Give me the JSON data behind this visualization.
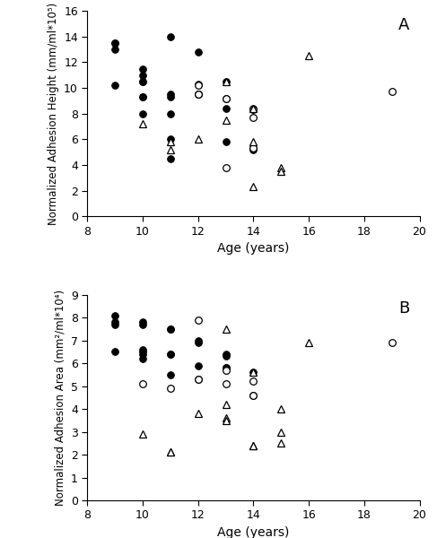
{
  "plot_A": {
    "title": "A",
    "ylabel": "Normalized Adhesion Height (mm/ml*10⁵)",
    "xlabel": "Age (years)",
    "xlim": [
      8,
      20
    ],
    "ylim": [
      0,
      16
    ],
    "yticks": [
      0,
      2,
      4,
      6,
      8,
      10,
      12,
      14,
      16
    ],
    "xticks": [
      8,
      10,
      12,
      14,
      16,
      18,
      20
    ],
    "filled_circles": {
      "x": [
        9,
        9,
        9,
        9,
        10,
        10,
        10,
        10,
        10,
        10,
        10,
        11,
        11,
        11,
        11,
        11,
        11,
        12,
        12,
        12,
        12,
        13,
        13,
        13,
        13,
        14,
        14,
        14
      ],
      "y": [
        13.0,
        13.5,
        13.5,
        10.2,
        11.5,
        11.0,
        10.5,
        10.5,
        9.3,
        9.3,
        8.0,
        14.0,
        9.5,
        9.3,
        8.0,
        6.0,
        4.5,
        12.8,
        10.3,
        9.5,
        9.5,
        10.5,
        9.2,
        8.4,
        5.8,
        8.4,
        5.3,
        5.2
      ]
    },
    "open_circles": {
      "x": [
        12,
        12,
        13,
        13,
        14,
        14,
        14,
        19
      ],
      "y": [
        10.2,
        9.5,
        9.2,
        3.8,
        8.3,
        7.7,
        5.3,
        9.7
      ]
    },
    "triangles": {
      "x": [
        10,
        11,
        11,
        12,
        13,
        13,
        14,
        14,
        14,
        15,
        15,
        16
      ],
      "y": [
        7.2,
        5.8,
        5.2,
        6.0,
        10.5,
        7.5,
        8.4,
        5.8,
        2.3,
        3.8,
        3.5,
        12.5
      ]
    }
  },
  "plot_B": {
    "title": "B",
    "ylabel": "Normalized Adhesion Area (mm²/ml*10⁴)",
    "xlabel": "Age (years)",
    "xlim": [
      8,
      20
    ],
    "ylim": [
      0,
      9
    ],
    "yticks": [
      0,
      1,
      2,
      3,
      4,
      5,
      6,
      7,
      8,
      9
    ],
    "xticks": [
      8,
      10,
      12,
      14,
      16,
      18,
      20
    ],
    "filled_circles": {
      "x": [
        9,
        9,
        9,
        9,
        10,
        10,
        10,
        10,
        10,
        10,
        11,
        11,
        11,
        11,
        11,
        12,
        12,
        12,
        12,
        13,
        13,
        13,
        13,
        14,
        14
      ],
      "y": [
        8.1,
        7.8,
        7.7,
        6.5,
        7.8,
        7.7,
        6.6,
        6.5,
        6.4,
        6.2,
        7.5,
        7.5,
        6.4,
        6.4,
        5.5,
        7.0,
        6.9,
        5.9,
        5.3,
        6.4,
        6.3,
        5.8,
        5.8,
        5.6,
        4.6
      ]
    },
    "open_circles": {
      "x": [
        10,
        11,
        12,
        12,
        13,
        13,
        14,
        14,
        19
      ],
      "y": [
        5.1,
        4.9,
        7.9,
        5.3,
        5.7,
        5.1,
        5.2,
        4.6,
        6.9
      ]
    },
    "triangles": {
      "x": [
        10,
        11,
        11,
        12,
        13,
        13,
        13,
        13,
        14,
        14,
        14,
        15,
        15,
        15,
        16
      ],
      "y": [
        2.9,
        2.1,
        2.1,
        3.8,
        7.5,
        4.2,
        3.6,
        3.5,
        5.6,
        2.4,
        2.4,
        4.0,
        3.0,
        2.5,
        6.9
      ]
    }
  }
}
